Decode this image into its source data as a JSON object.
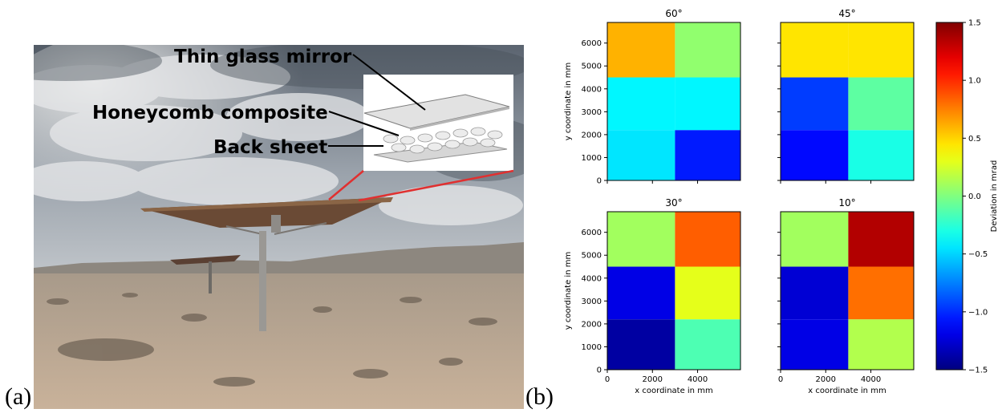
{
  "figure": {
    "label_a": "(a)",
    "label_b": "(b)"
  },
  "photo": {
    "callouts": [
      "Thin glass mirror",
      "Honeycomb composite",
      "Back sheet"
    ]
  },
  "chart_data": {
    "type": "heatmap",
    "x_edges": [
      0,
      3000,
      5900
    ],
    "y_edges": [
      0,
      2200,
      4500,
      6900
    ],
    "xlabel": "x coordinate in mm",
    "ylabel": "y coordinate in mm",
    "xlim": [
      0,
      5900
    ],
    "ylim": [
      0,
      6900
    ],
    "x_ticks": [
      0,
      2000,
      4000
    ],
    "y_ticks": [
      0,
      1000,
      2000,
      3000,
      4000,
      5000,
      6000
    ],
    "colorbar": {
      "label": "Deviation in mrad",
      "range": [
        -1.5,
        1.5
      ],
      "ticks": [
        -1.5,
        -1.0,
        -0.5,
        0.0,
        0.5,
        1.0,
        1.5
      ],
      "tick_labels": [
        "−1.5",
        "−1.0",
        "−0.5",
        "0.0",
        "0.5",
        "1.0",
        "1.5"
      ],
      "colormap": "jet"
    },
    "panels": [
      {
        "title": "60°",
        "values": [
          [
            -0.45,
            -1.05
          ],
          [
            -0.4,
            -0.4
          ],
          [
            0.6,
            0.05
          ]
        ]
      },
      {
        "title": "45°",
        "values": [
          [
            -1.1,
            -0.3
          ],
          [
            -0.95,
            -0.1
          ],
          [
            0.45,
            0.45
          ]
        ]
      },
      {
        "title": "30°",
        "values": [
          [
            -1.4,
            -0.15
          ],
          [
            -1.2,
            0.3
          ],
          [
            0.1,
            0.85
          ]
        ]
      },
      {
        "title": "10°",
        "values": [
          [
            -1.2,
            0.15
          ],
          [
            -1.25,
            0.8
          ],
          [
            0.1,
            1.35
          ]
        ]
      }
    ]
  }
}
